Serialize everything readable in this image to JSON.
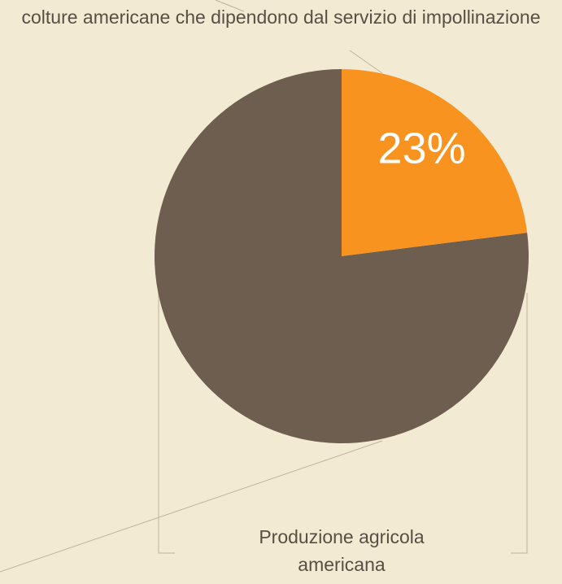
{
  "chart_data": {
    "type": "pie",
    "categories": [
      "colture americane che dipendono dal servizio di impollinazione",
      "Produzione agricola americana"
    ],
    "values": [
      23,
      77
    ],
    "value_labels": [
      "23%",
      null
    ],
    "colors": [
      "#f7931e",
      "#6e5e50"
    ]
  }
}
